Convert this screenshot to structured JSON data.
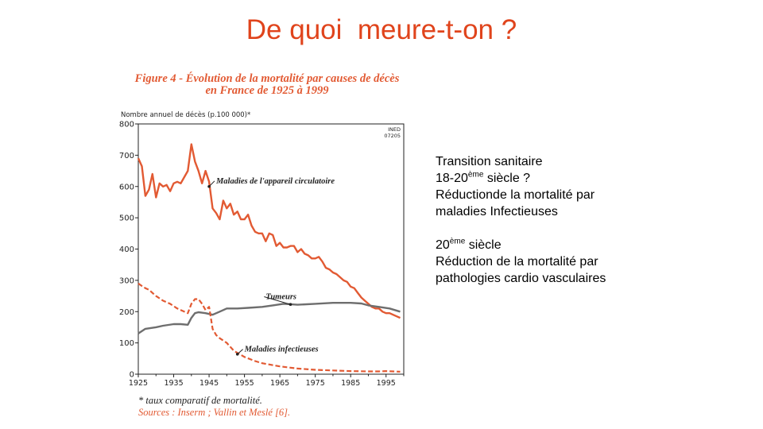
{
  "slide": {
    "title": "De quoi  meure-t-on ?"
  },
  "figure": {
    "title_line1": "Figure 4 - Évolution de la mortalité par causes de décès",
    "title_line2": "en France de 1925 à 1999",
    "footnote": "* taux comparatif de mortalité.",
    "sources": "Sources : Inserm ; Vallin et Meslé [6]."
  },
  "chart_data": {
    "type": "line",
    "ylabel": "Nombre annuel de décès (p.100 000)*",
    "xlabel": "",
    "ylim": [
      0,
      800
    ],
    "xlim": [
      1925,
      2000
    ],
    "yticks": [
      0,
      100,
      200,
      300,
      400,
      500,
      600,
      700,
      800
    ],
    "xticks": [
      1925,
      1935,
      1945,
      1955,
      1965,
      1975,
      1985,
      1995
    ],
    "grid": false,
    "corner_label_1": "INED",
    "corner_label_2": "07205",
    "colors": {
      "red": "#e25a33",
      "gray": "#6e6e6e",
      "axis": "#222222"
    },
    "series": [
      {
        "name": "Maladies de l'appareil circulatoire",
        "style": "solid",
        "color": "#e25a33",
        "x": [
          1925,
          1926,
          1927,
          1928,
          1929,
          1930,
          1931,
          1932,
          1933,
          1934,
          1935,
          1936,
          1937,
          1938,
          1939,
          1940,
          1941,
          1942,
          1943,
          1944,
          1945,
          1946,
          1947,
          1948,
          1949,
          1950,
          1951,
          1952,
          1953,
          1954,
          1955,
          1956,
          1957,
          1958,
          1959,
          1960,
          1961,
          1962,
          1963,
          1964,
          1965,
          1966,
          1967,
          1968,
          1969,
          1970,
          1971,
          1972,
          1973,
          1974,
          1975,
          1976,
          1977,
          1978,
          1979,
          1980,
          1981,
          1982,
          1983,
          1984,
          1985,
          1986,
          1987,
          1988,
          1989,
          1990,
          1991,
          1992,
          1993,
          1994,
          1995,
          1996,
          1997,
          1998,
          1999
        ],
        "y": [
          690,
          665,
          570,
          590,
          640,
          565,
          610,
          600,
          605,
          585,
          610,
          615,
          610,
          630,
          650,
          735,
          680,
          650,
          610,
          650,
          615,
          530,
          515,
          495,
          555,
          530,
          545,
          510,
          520,
          495,
          495,
          510,
          475,
          455,
          450,
          450,
          425,
          450,
          445,
          410,
          420,
          405,
          405,
          410,
          410,
          390,
          400,
          385,
          380,
          370,
          370,
          375,
          360,
          340,
          335,
          325,
          320,
          310,
          300,
          295,
          280,
          275,
          260,
          245,
          235,
          225,
          215,
          210,
          210,
          200,
          195,
          195,
          190,
          185,
          180
        ]
      },
      {
        "name": "Tumeurs",
        "style": "solid",
        "color": "#6e6e6e",
        "x": [
          1925,
          1927,
          1930,
          1932,
          1935,
          1937,
          1939,
          1940,
          1941,
          1942,
          1944,
          1946,
          1948,
          1950,
          1953,
          1956,
          1960,
          1963,
          1966,
          1970,
          1975,
          1980,
          1985,
          1988,
          1990,
          1993,
          1996,
          1999
        ],
        "y": [
          130,
          145,
          150,
          155,
          160,
          160,
          158,
          180,
          195,
          198,
          195,
          190,
          200,
          210,
          210,
          212,
          215,
          220,
          225,
          222,
          225,
          228,
          228,
          226,
          220,
          215,
          210,
          200
        ]
      },
      {
        "name": "Maladies infectieuses",
        "style": "dashed",
        "color": "#e25a33",
        "x": [
          1925,
          1926,
          1927,
          1928,
          1930,
          1932,
          1934,
          1936,
          1938,
          1939,
          1940,
          1941,
          1942,
          1943,
          1944,
          1945,
          1946,
          1947,
          1948,
          1950,
          1952,
          1955,
          1958,
          1960,
          1965,
          1970,
          1975,
          1980,
          1985,
          1990,
          1993,
          1995,
          1997,
          1999
        ],
        "y": [
          290,
          282,
          275,
          270,
          250,
          235,
          225,
          210,
          200,
          195,
          225,
          240,
          240,
          225,
          205,
          215,
          145,
          125,
          115,
          100,
          75,
          55,
          42,
          35,
          25,
          18,
          14,
          12,
          10,
          9,
          9,
          10,
          9,
          8
        ]
      }
    ],
    "annotations": [
      {
        "text": "Maladies de l'appareil circulatoire",
        "target_year": 1945,
        "target_value": 600,
        "label_year": 1947,
        "label_value": 610
      },
      {
        "text": "Tumeurs",
        "target_year": 1968,
        "target_value": 223,
        "label_year": 1961,
        "label_value": 240
      },
      {
        "text": "Maladies infectieuses",
        "target_year": 1953,
        "target_value": 64,
        "label_year": 1955,
        "label_value": 72
      }
    ]
  },
  "side": {
    "line1": "Transition sanitaire",
    "line2_pre": "18-20",
    "line2_sup": "ème",
    "line2_post": " siècle ?",
    "line3": "Réductionde la mortalité par",
    "line4": "maladies Infectieuses",
    "line5_pre": "20",
    "line5_sup": "ème",
    "line5_post": " siècle",
    "line6": "Réduction de la mortalité par",
    "line7": "pathologies cardio vasculaires"
  }
}
